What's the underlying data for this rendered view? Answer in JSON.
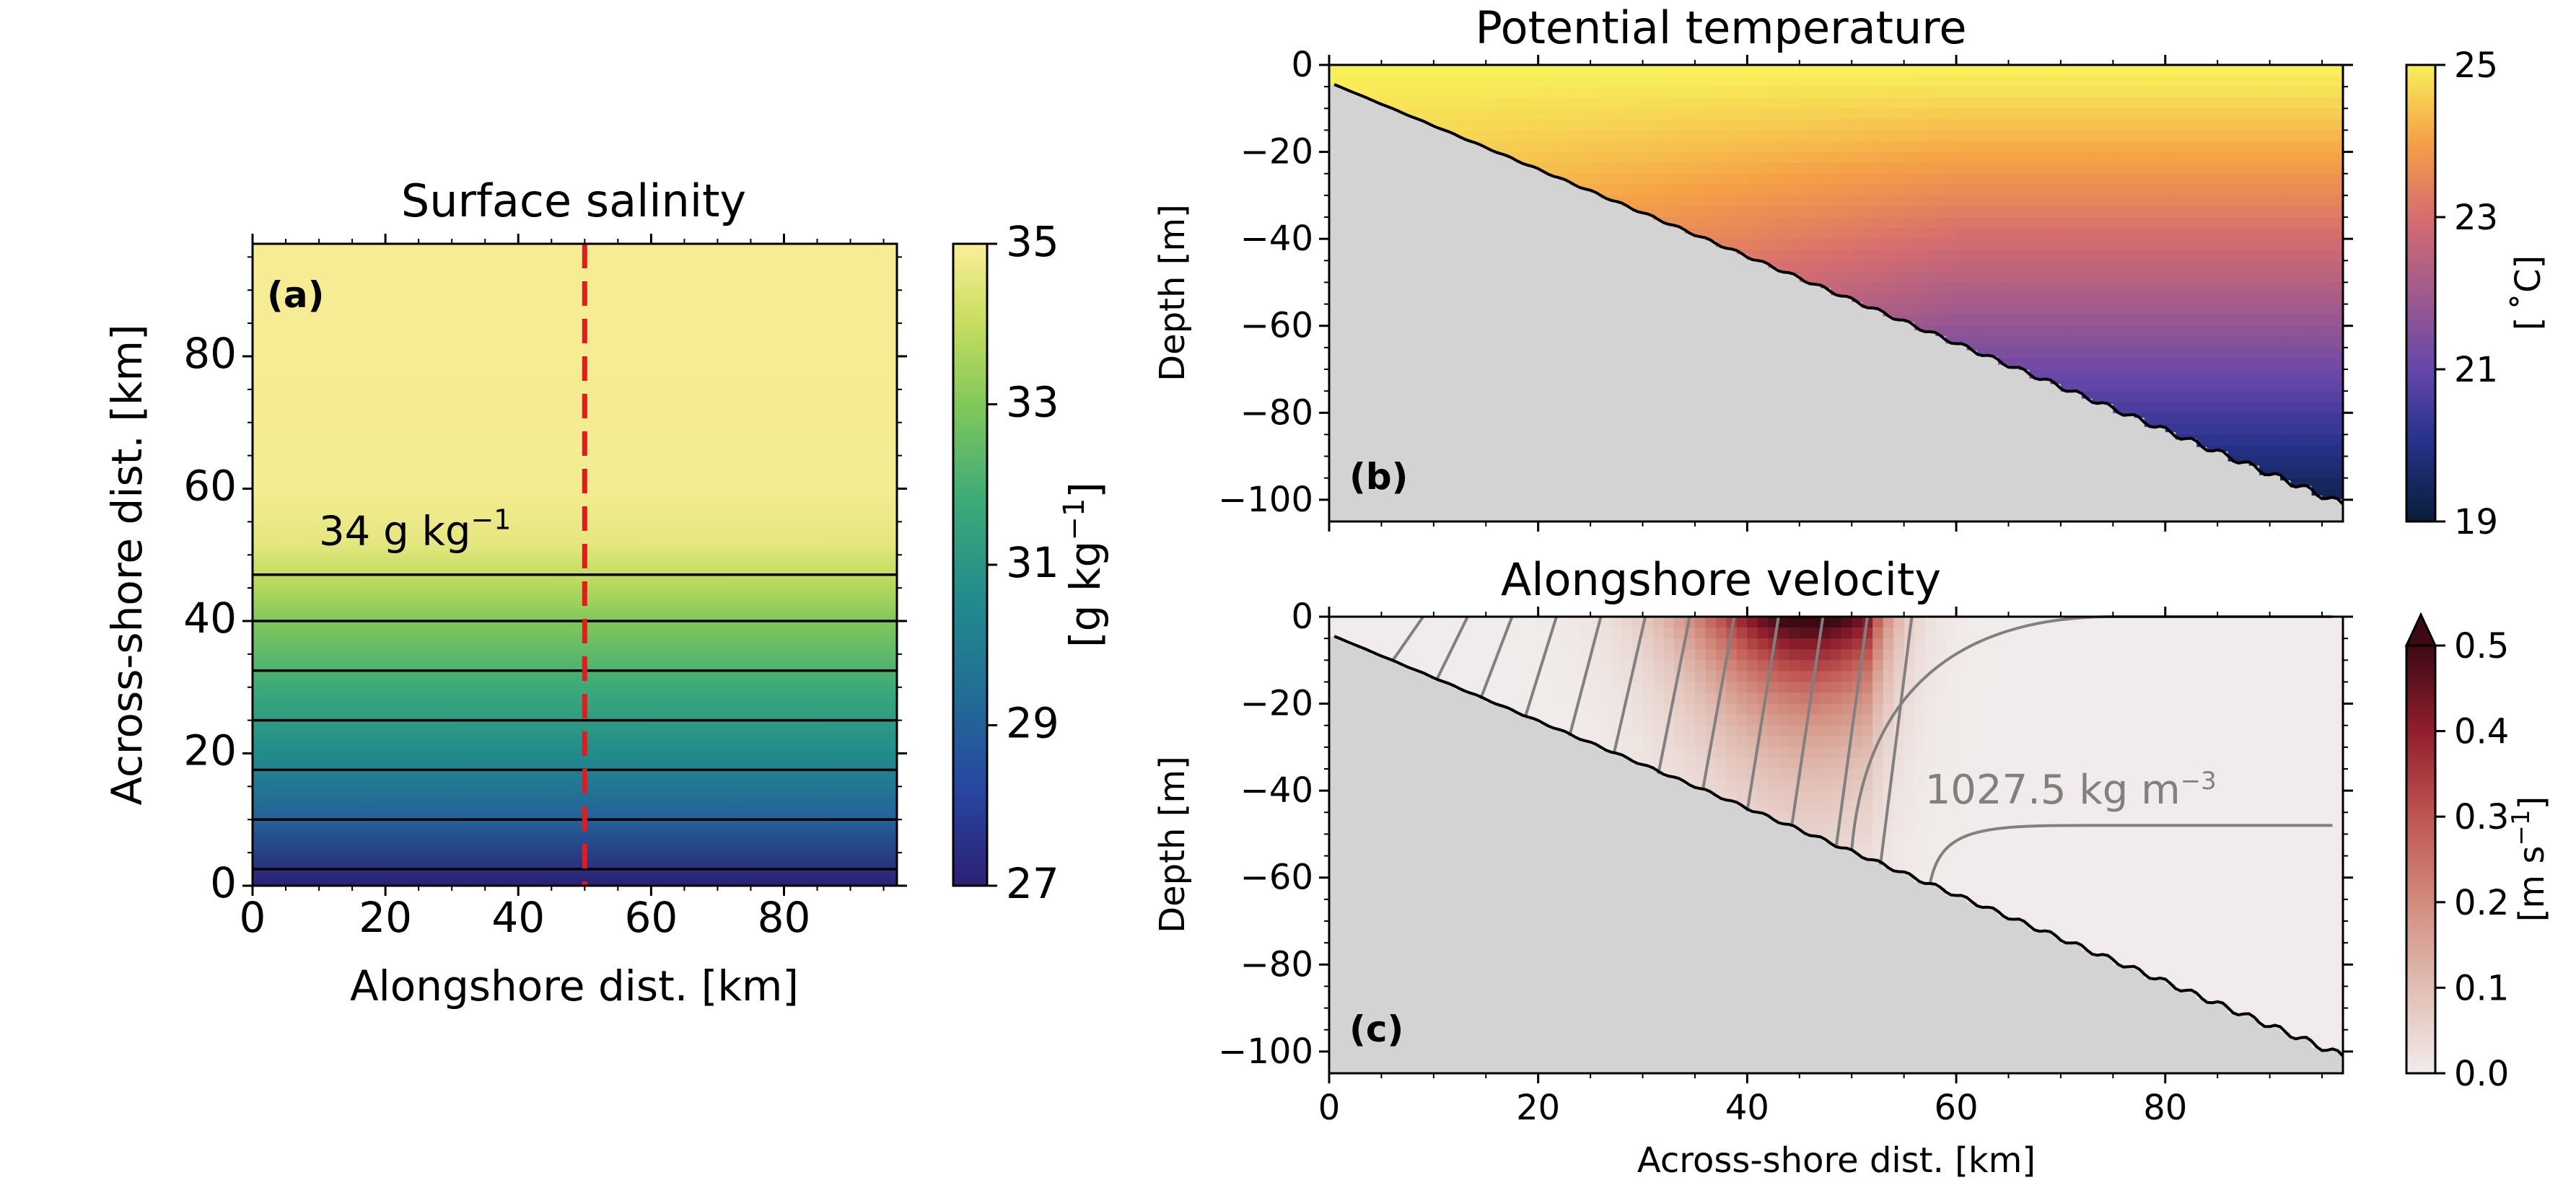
{
  "colors": {
    "background": "#ffffff",
    "land": "#d3d3d3",
    "transect": "#e41a1c",
    "contour_black": "#000000",
    "contour_gray": "#808080"
  },
  "chart_data": [
    {
      "id": "a",
      "type": "heatmap",
      "panel_label": "(a)",
      "title": "Surface salinity",
      "xlabel": "Alongshore dist. [km]",
      "ylabel": "Across-shore dist. [km]",
      "xlim": [
        0,
        97
      ],
      "ylim": [
        0,
        97
      ],
      "xticks": [
        0,
        20,
        40,
        60,
        80
      ],
      "yticks": [
        0,
        20,
        40,
        60,
        80
      ],
      "grid": false,
      "colormap": "viridis",
      "colorbar": {
        "label_text": "[g kg",
        "label_exp": "−1",
        "label_close": "]",
        "range": [
          27,
          35
        ],
        "ticks": [
          27,
          29,
          31,
          33,
          35
        ]
      },
      "salinity_profile": [
        {
          "y": 0,
          "s": 27.0
        },
        {
          "y": 10,
          "s": 29.0
        },
        {
          "y": 20,
          "s": 30.6
        },
        {
          "y": 30,
          "s": 31.8
        },
        {
          "y": 40,
          "s": 33.0
        },
        {
          "y": 47,
          "s": 34.0
        },
        {
          "y": 52,
          "s": 34.6
        },
        {
          "y": 60,
          "s": 34.85
        },
        {
          "y": 97,
          "s": 34.9
        }
      ],
      "contour_levels_y": [
        2.5,
        10,
        17.5,
        25,
        32.5,
        40,
        47
      ],
      "contour_label": {
        "text": "34 g kg",
        "exp": "−1",
        "x": 10,
        "y": 51.5
      },
      "transect_x": 50
    },
    {
      "id": "b",
      "type": "heatmap",
      "panel_label": "(b)",
      "title": "Potential temperature",
      "xlabel": "",
      "ylabel": "Depth [m]",
      "xlim": [
        0,
        97
      ],
      "ylim": [
        -105,
        0
      ],
      "xticks": [
        0,
        20,
        40,
        60,
        80
      ],
      "yticks": [
        0,
        -20,
        -40,
        -60,
        -80,
        -100
      ],
      "show_xtick_labels": false,
      "grid": false,
      "colormap": "thermal",
      "colorbar": {
        "label_text": "[ ˚C]",
        "range": [
          19,
          25
        ],
        "ticks": [
          19,
          21,
          23,
          25
        ]
      },
      "bathymetry": {
        "x0": 0.5,
        "d0": -4.5,
        "x1": 97,
        "d1": -101
      }
    },
    {
      "id": "c",
      "type": "heatmap",
      "panel_label": "(c)",
      "title": "Alongshore velocity",
      "xlabel": "Across-shore dist. [km]",
      "ylabel": "Depth [m]",
      "xlim": [
        0,
        97
      ],
      "ylim": [
        -105,
        0
      ],
      "xticks": [
        0,
        20,
        40,
        60,
        80
      ],
      "yticks": [
        0,
        -20,
        -40,
        -60,
        -80,
        -100
      ],
      "grid": false,
      "colormap": "amp",
      "colorbar": {
        "label_text": "[m s",
        "label_exp": "−1",
        "label_close": "]",
        "range": [
          0,
          0.5
        ],
        "ticks": [
          0.0,
          0.1,
          0.2,
          0.3,
          0.4,
          0.5
        ],
        "extend": "max"
      },
      "jet": {
        "x_center": 46,
        "x_halfwidth": 13,
        "peak": 0.52,
        "depth_scale": 22
      },
      "density_contour_label": {
        "text": "1027.5 kg m",
        "exp": "−3",
        "x": 57,
        "y": -43
      },
      "bathymetry": {
        "x0": 0.5,
        "d0": -4.5,
        "x1": 97,
        "d1": -101
      }
    }
  ]
}
